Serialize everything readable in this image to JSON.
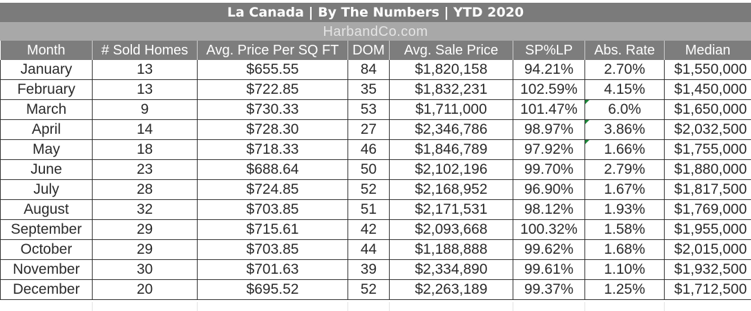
{
  "title": "La Canada  |  By The Numbers  |  YTD 2020",
  "subtitle": "HarbandCo.com",
  "columns": [
    "Month",
    "# Sold Homes",
    "Avg. Price Per SQ FT",
    "DOM",
    "Avg. Sale Price",
    "SP%LP",
    "Abs. Rate",
    "Median"
  ],
  "rows": [
    {
      "month": "January",
      "sold": "13",
      "ppsf": "$655.55",
      "dom": "84",
      "avg": "$1,820,158",
      "splp": "94.21%",
      "abs": "2.70%",
      "median": "$1,550,000"
    },
    {
      "month": "February",
      "sold": "13",
      "ppsf": "$722.85",
      "dom": "35",
      "avg": "$1,832,231",
      "splp": "102.59%",
      "abs": "4.15%",
      "median": "$1,450,000"
    },
    {
      "month": "March",
      "sold": "9",
      "ppsf": "$730.33",
      "dom": "53",
      "avg": "$1,711,000",
      "splp": "101.47%",
      "abs": "6.0%",
      "median": "$1,650,000"
    },
    {
      "month": "April",
      "sold": "14",
      "ppsf": "$728.30",
      "dom": "27",
      "avg": "$2,346,786",
      "splp": "98.97%",
      "abs": "3.86%",
      "median": "$2,032,500"
    },
    {
      "month": "May",
      "sold": "18",
      "ppsf": "$718.33",
      "dom": "46",
      "avg": "$1,846,789",
      "splp": "97.92%",
      "abs": "1.66%",
      "median": "$1,755,000"
    },
    {
      "month": "June",
      "sold": "23",
      "ppsf": "$688.64",
      "dom": "50",
      "avg": "$2,102,196",
      "splp": "99.70%",
      "abs": "2.79%",
      "median": "$1,880,000"
    },
    {
      "month": "July",
      "sold": "28",
      "ppsf": "$724.85",
      "dom": "52",
      "avg": "$2,168,952",
      "splp": "96.90%",
      "abs": "1.67%",
      "median": "$1,817,500"
    },
    {
      "month": "August",
      "sold": "32",
      "ppsf": "$703.85",
      "dom": "51",
      "avg": "$2,171,531",
      "splp": "98.12%",
      "abs": "1.93%",
      "median": "$1,769,000"
    },
    {
      "month": "September",
      "sold": "29",
      "ppsf": "$715.61",
      "dom": "42",
      "avg": "$2,093,668",
      "splp": "100.32%",
      "abs": "1.58%",
      "median": "$1,955,000"
    },
    {
      "month": "October",
      "sold": "29",
      "ppsf": "$703.85",
      "dom": "44",
      "avg": "$1,188,888",
      "splp": "99.62%",
      "abs": "1.68%",
      "median": "$2,015,000"
    },
    {
      "month": "November",
      "sold": "30",
      "ppsf": "$701.63",
      "dom": "39",
      "avg": "$2,334,890",
      "splp": "99.61%",
      "abs": "1.10%",
      "median": "$1,932,500"
    },
    {
      "month": "December",
      "sold": "20",
      "ppsf": "$695.52",
      "dom": "52",
      "avg": "$2,263,189",
      "splp": "99.37%",
      "abs": "1.25%",
      "median": "$1,712,500"
    }
  ],
  "colors": {
    "header_bg": "#7d7d7d",
    "subtitle_bg": "#a8a8a8",
    "error_marker": "#1e8a3a"
  }
}
